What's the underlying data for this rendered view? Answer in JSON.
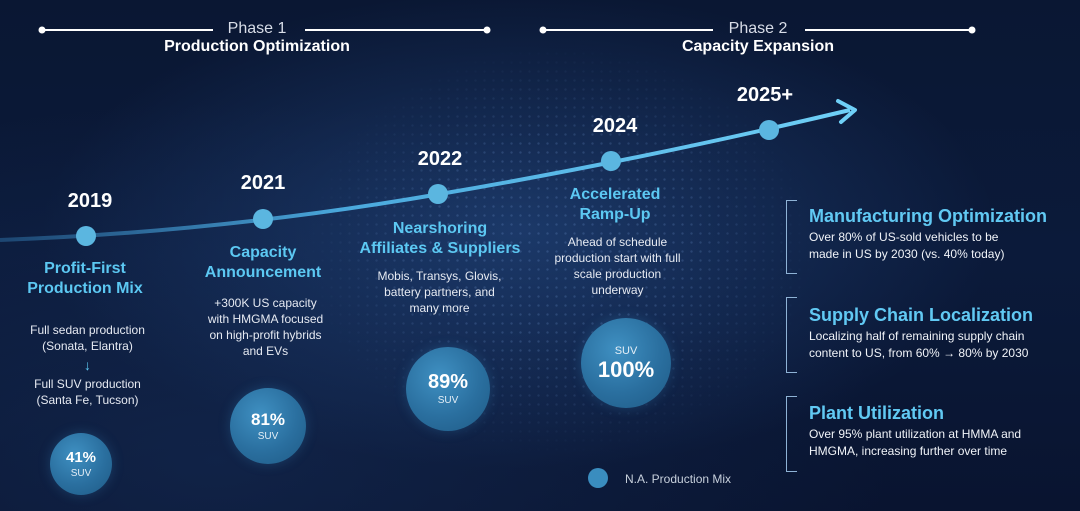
{
  "phases": [
    {
      "label": "Phase 1",
      "title": "Production Optimization"
    },
    {
      "label": "Phase 2",
      "title": "Capacity Expansion"
    }
  ],
  "milestones": [
    {
      "year": "2019",
      "title_lines": [
        "Profit-First",
        "Production Mix"
      ],
      "desc_lines": [
        "Full sedan production",
        "(Sonata, Elantra)"
      ],
      "desc2_lines": [
        "Full SUV production",
        "(Santa Fe, Tucson)"
      ],
      "arrow": "↓",
      "suv_pct": "41%",
      "suv_label": "SUV",
      "suv_value": 41
    },
    {
      "year": "2021",
      "title_lines": [
        "Capacity",
        "Announcement"
      ],
      "desc_lines": [
        "+300K US capacity",
        "with HMGMA focused",
        "on high-profit hybrids",
        "and EVs"
      ],
      "suv_pct": "81%",
      "suv_label": "SUV",
      "suv_value": 81
    },
    {
      "year": "2022",
      "title_lines": [
        "Nearshoring",
        "Affiliates & Suppliers"
      ],
      "desc_lines": [
        "Mobis, Transys, Glovis,",
        "battery partners, and",
        "many more"
      ],
      "suv_pct": "89%",
      "suv_label": "SUV",
      "suv_value": 89
    },
    {
      "year": "2024",
      "title_lines": [
        "Accelerated",
        "Ramp-Up"
      ],
      "desc_lines": [
        "Ahead of schedule",
        "production start with full",
        "scale production",
        "underway"
      ],
      "suv_pct": "100%",
      "suv_label": "SUV",
      "suv_value": 100
    },
    {
      "year": "2025+"
    }
  ],
  "legend": {
    "label": "N.A. Production Mix"
  },
  "side_panels": [
    {
      "title": "Manufacturing Optimization",
      "desc_lines": [
        "Over 80% of US-sold vehicles to be",
        "made in US by 2030 (vs. 40% today)"
      ]
    },
    {
      "title": "Supply Chain Localization",
      "desc_lines": [
        "Localizing half of remaining supply chain",
        "content to US, from 60% → 80% by 2030"
      ]
    },
    {
      "title": "Plant Utilization",
      "desc_lines": [
        "Over 95% plant utilization at HMMA and",
        "HMGMA, increasing further over time"
      ]
    }
  ],
  "colors": {
    "accent": "#5cc8f2",
    "bubble": "#2a6f9f",
    "background": "#0b1a3a"
  }
}
